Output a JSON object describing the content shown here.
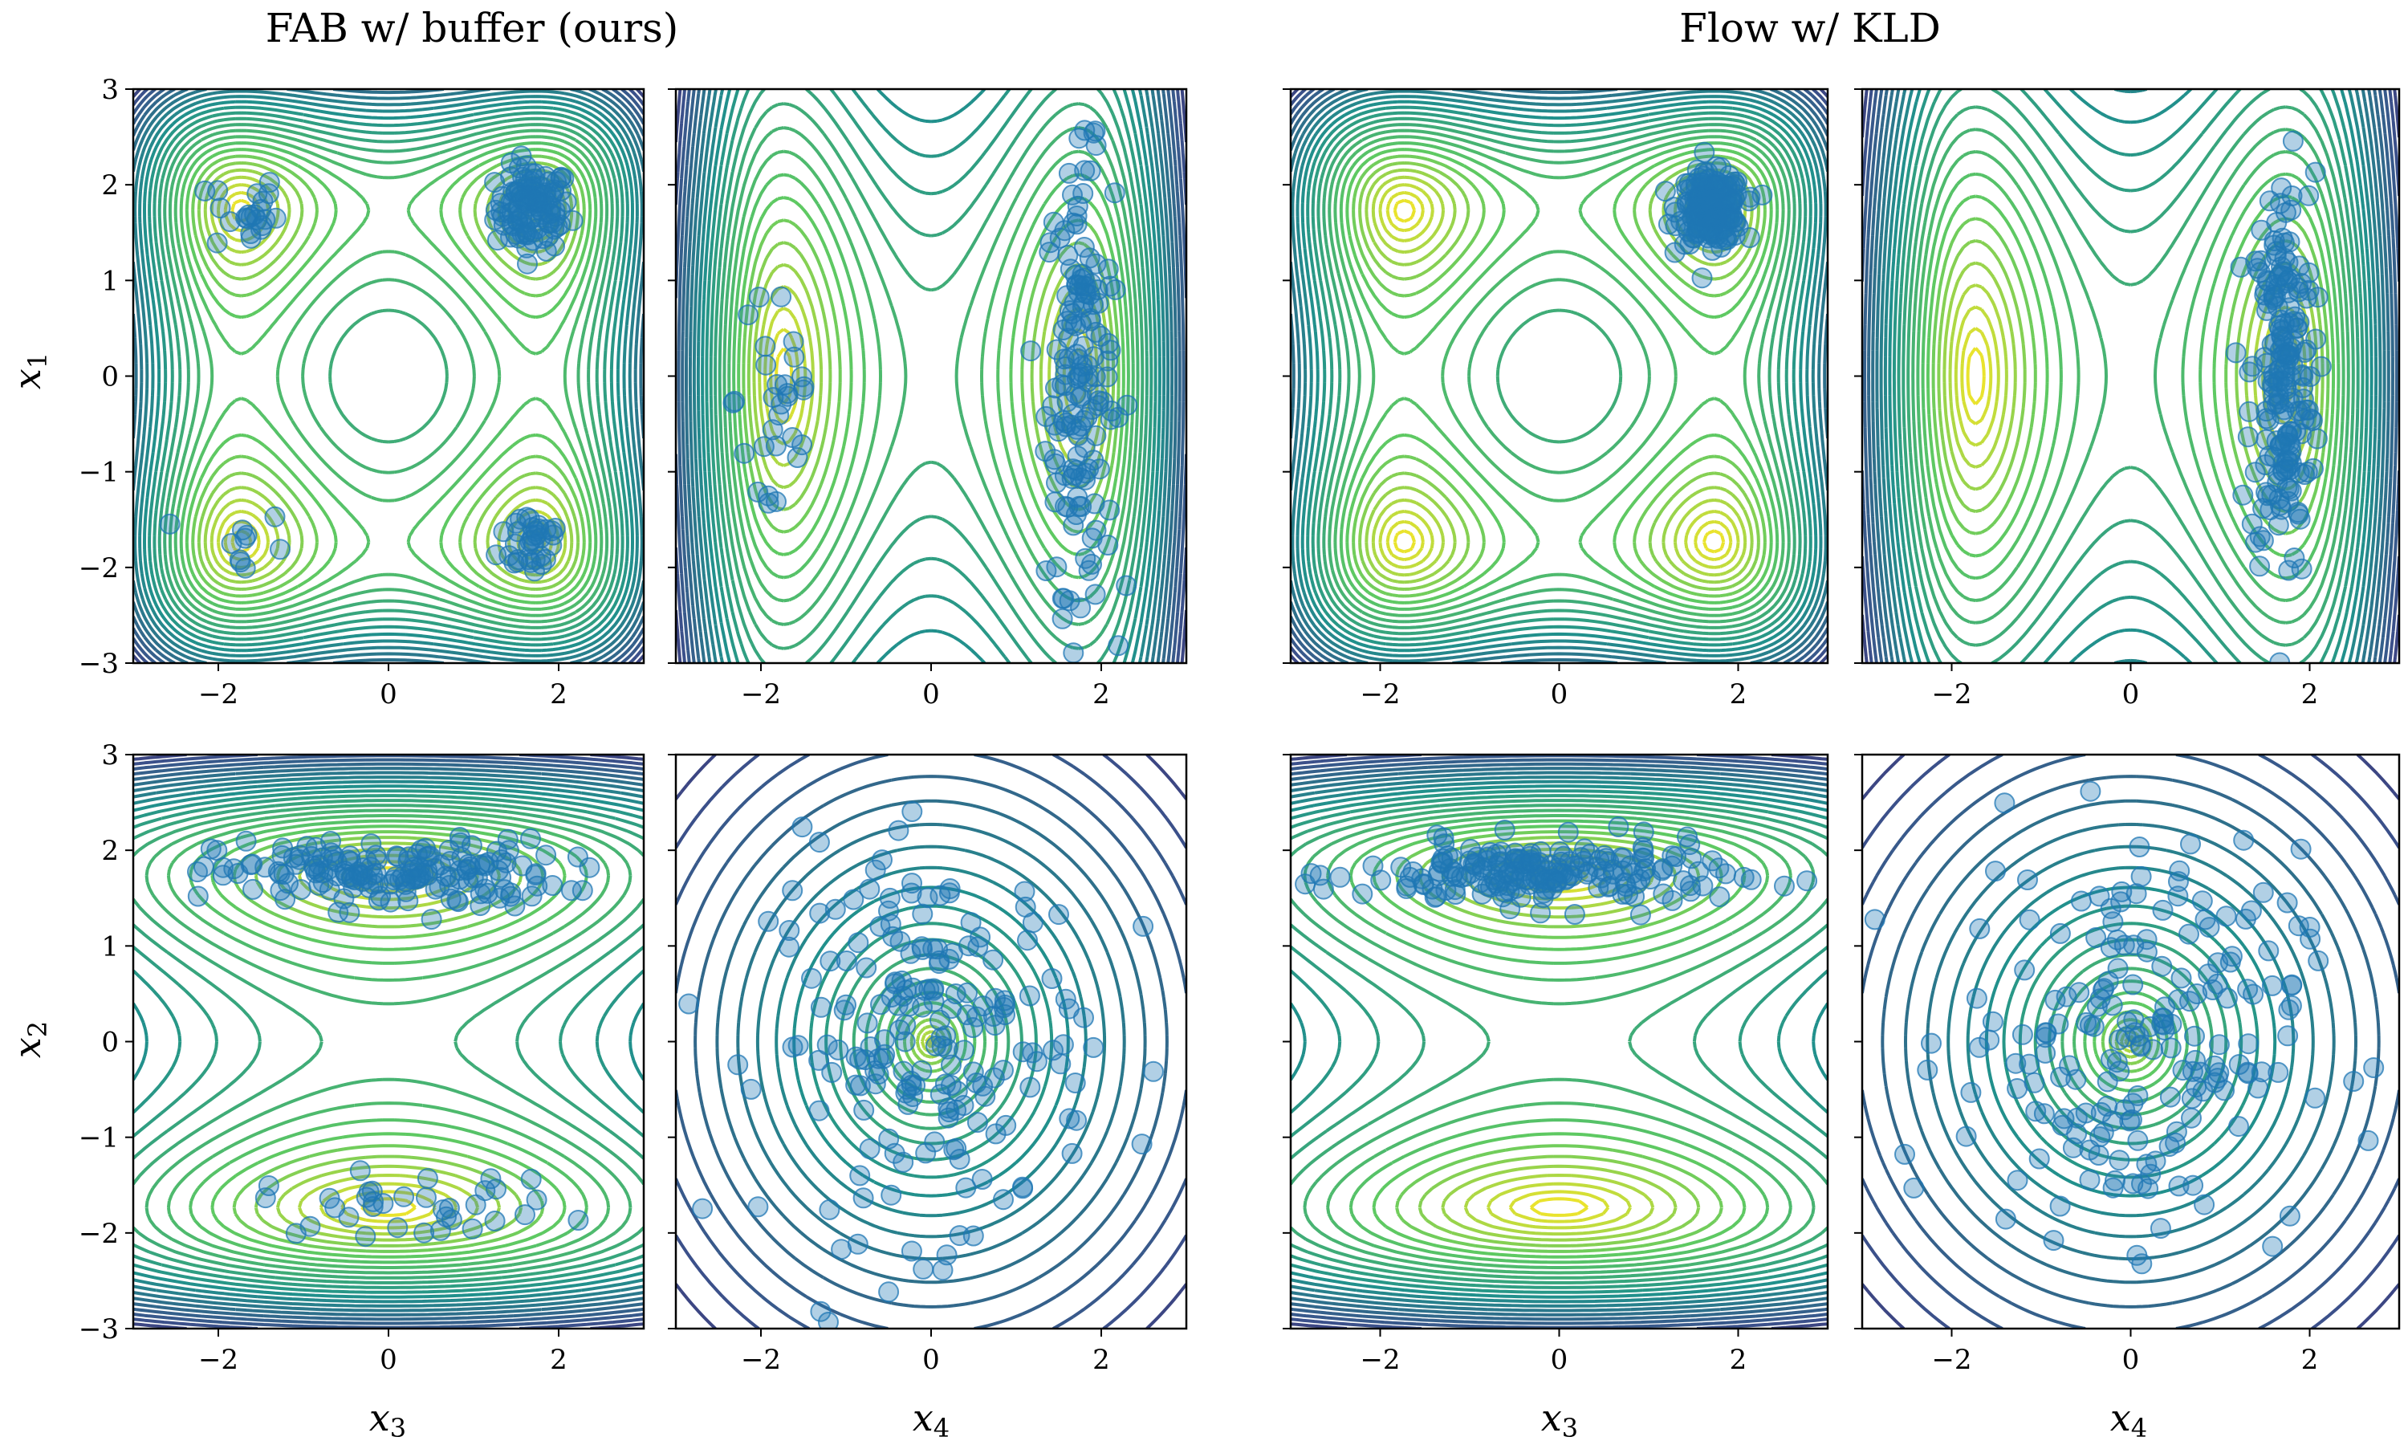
{
  "figure": {
    "column_titles": [
      "FAB w/ buffer (ours)",
      "Flow w/ KLD"
    ],
    "row_labels": [
      {
        "base": "x",
        "sub": "1"
      },
      {
        "base": "x",
        "sub": "2"
      }
    ],
    "column_labels": [
      {
        "base": "x",
        "sub": "3"
      },
      {
        "base": "x",
        "sub": "4"
      },
      {
        "base": "x",
        "sub": "3"
      },
      {
        "base": "x",
        "sub": "4"
      }
    ]
  },
  "chart_data": [
    {
      "type": "scatter",
      "method": "FAB w/ buffer (ours)",
      "x_var": "x3",
      "y_var": "x1",
      "contour": "double_well_2d",
      "xlim": [
        -3,
        3
      ],
      "ylim": [
        -3,
        3
      ],
      "xticks": [
        -2,
        0,
        2
      ],
      "yticks": [
        -3,
        -2,
        -1,
        0,
        1,
        2,
        3
      ],
      "tick_labels_x": [
        "−2",
        "0",
        "2"
      ],
      "tick_labels_y": [
        "−3",
        "−2",
        "−1",
        "0",
        "1",
        "2",
        "3"
      ],
      "show_yticklabels": true,
      "show_xlabel": false,
      "clusters": [
        {
          "cx": 1.7,
          "cy": 1.75,
          "sx": 0.22,
          "sy": 0.22,
          "n": 110
        },
        {
          "cx": -1.7,
          "cy": 1.7,
          "sx": 0.2,
          "sy": 0.22,
          "n": 22
        },
        {
          "cx": 1.7,
          "cy": -1.7,
          "sx": 0.2,
          "sy": 0.2,
          "n": 35
        },
        {
          "cx": -1.7,
          "cy": -1.8,
          "sx": 0.25,
          "sy": 0.22,
          "n": 10
        }
      ]
    },
    {
      "type": "scatter",
      "method": "FAB w/ buffer (ours)",
      "x_var": "x4",
      "y_var": "x1",
      "contour": "quadratic_x_doublewell_y",
      "xlim": [
        -3,
        3
      ],
      "ylim": [
        -3,
        3
      ],
      "xticks": [
        -2,
        0,
        2
      ],
      "yticks": [
        -3,
        -2,
        -1,
        0,
        1,
        2,
        3
      ],
      "tick_labels_x": [
        "−2",
        "0",
        "2"
      ],
      "tick_labels_y": [
        "−3",
        "−2",
        "−1",
        "0",
        "1",
        "2",
        "3"
      ],
      "show_yticklabels": false,
      "show_xlabel": false,
      "clusters": [
        {
          "cx": 1.75,
          "cy": 0.0,
          "sx": 0.2,
          "sy": 1.1,
          "n": 160
        },
        {
          "cx": -1.8,
          "cy": -0.2,
          "sx": 0.25,
          "sy": 1.0,
          "n": 30
        }
      ]
    },
    {
      "type": "scatter",
      "method": "Flow w/ KLD",
      "x_var": "x3",
      "y_var": "x1",
      "contour": "double_well_2d",
      "xlim": [
        -3,
        3
      ],
      "ylim": [
        -3,
        3
      ],
      "xticks": [
        -2,
        0,
        2
      ],
      "yticks": [
        -3,
        -2,
        -1,
        0,
        1,
        2,
        3
      ],
      "tick_labels_x": [
        "−2",
        "0",
        "2"
      ],
      "tick_labels_y": [
        "−3",
        "−2",
        "−1",
        "0",
        "1",
        "2",
        "3"
      ],
      "show_yticklabels": false,
      "show_xlabel": false,
      "clusters": [
        {
          "cx": 1.7,
          "cy": 1.75,
          "sx": 0.18,
          "sy": 0.18,
          "n": 200
        }
      ]
    },
    {
      "type": "scatter",
      "method": "Flow w/ KLD",
      "x_var": "x4",
      "y_var": "x1",
      "contour": "quadratic_x_singlewell_y",
      "xlim": [
        -3,
        3
      ],
      "ylim": [
        -3,
        3
      ],
      "xticks": [
        -2,
        0,
        2
      ],
      "yticks": [
        -3,
        -2,
        -1,
        0,
        1,
        2,
        3
      ],
      "tick_labels_x": [
        "−2",
        "0",
        "2"
      ],
      "tick_labels_y": [
        "−3",
        "−2",
        "−1",
        "0",
        "1",
        "2",
        "3"
      ],
      "show_yticklabels": false,
      "show_xlabel": false,
      "clusters": [
        {
          "cx": 1.7,
          "cy": 0.0,
          "sx": 0.18,
          "sy": 1.05,
          "n": 200
        }
      ]
    },
    {
      "type": "scatter",
      "method": "FAB w/ buffer (ours)",
      "x_var": "x3",
      "y_var": "x2",
      "contour": "doublewell_y_wide_x",
      "xlim": [
        -3,
        3
      ],
      "ylim": [
        -3,
        3
      ],
      "xticks": [
        -2,
        0,
        2
      ],
      "yticks": [
        -3,
        -2,
        -1,
        0,
        1,
        2,
        3
      ],
      "tick_labels_x": [
        "−2",
        "0",
        "2"
      ],
      "tick_labels_y": [
        "−3",
        "−2",
        "−1",
        "0",
        "1",
        "2",
        "3"
      ],
      "show_yticklabels": true,
      "show_xlabel": true,
      "clusters": [
        {
          "cx": 0.0,
          "cy": 1.75,
          "sx": 1.0,
          "sy": 0.18,
          "n": 170
        },
        {
          "cx": 0.3,
          "cy": -1.7,
          "sx": 0.9,
          "sy": 0.16,
          "n": 35
        }
      ]
    },
    {
      "type": "scatter",
      "method": "FAB w/ buffer (ours)",
      "x_var": "x4",
      "y_var": "x2",
      "contour": "isotropic",
      "xlim": [
        -3,
        3
      ],
      "ylim": [
        -3,
        3
      ],
      "xticks": [
        -2,
        0,
        2
      ],
      "yticks": [
        -3,
        -2,
        -1,
        0,
        1,
        2,
        3
      ],
      "tick_labels_x": [
        "−2",
        "0",
        "2"
      ],
      "tick_labels_y": [
        "−3",
        "−2",
        "−1",
        "0",
        "1",
        "2",
        "3"
      ],
      "show_yticklabels": false,
      "show_xlabel": true,
      "clusters": [
        {
          "cx": 0.0,
          "cy": 0.0,
          "sx": 0.95,
          "sy": 1.0,
          "n": 200
        }
      ]
    },
    {
      "type": "scatter",
      "method": "Flow w/ KLD",
      "x_var": "x3",
      "y_var": "x2",
      "contour": "doublewell_y_wide_x",
      "xlim": [
        -3,
        3
      ],
      "ylim": [
        -3,
        3
      ],
      "xticks": [
        -2,
        0,
        2
      ],
      "yticks": [
        -3,
        -2,
        -1,
        0,
        1,
        2,
        3
      ],
      "tick_labels_x": [
        "−2",
        "0",
        "2"
      ],
      "tick_labels_y": [
        "−3",
        "−2",
        "−1",
        "0",
        "1",
        "2",
        "3"
      ],
      "show_yticklabels": false,
      "show_xlabel": true,
      "clusters": [
        {
          "cx": -0.2,
          "cy": 1.75,
          "sx": 1.0,
          "sy": 0.17,
          "n": 200
        }
      ]
    },
    {
      "type": "scatter",
      "method": "Flow w/ KLD",
      "x_var": "x4",
      "y_var": "x2",
      "contour": "isotropic",
      "xlim": [
        -3,
        3
      ],
      "ylim": [
        -3,
        3
      ],
      "xticks": [
        -2,
        0,
        2
      ],
      "yticks": [
        -3,
        -2,
        -1,
        0,
        1,
        2,
        3
      ],
      "tick_labels_x": [
        "−2",
        "0",
        "2"
      ],
      "tick_labels_y": [
        "−3",
        "−2",
        "−1",
        "0",
        "1",
        "2",
        "3"
      ],
      "show_yticklabels": false,
      "show_xlabel": true,
      "clusters": [
        {
          "cx": 0.0,
          "cy": 0.0,
          "sx": 0.95,
          "sy": 1.0,
          "n": 200
        }
      ]
    }
  ],
  "colors": {
    "points": "#1f77b4",
    "contour_colormap": "viridis"
  }
}
